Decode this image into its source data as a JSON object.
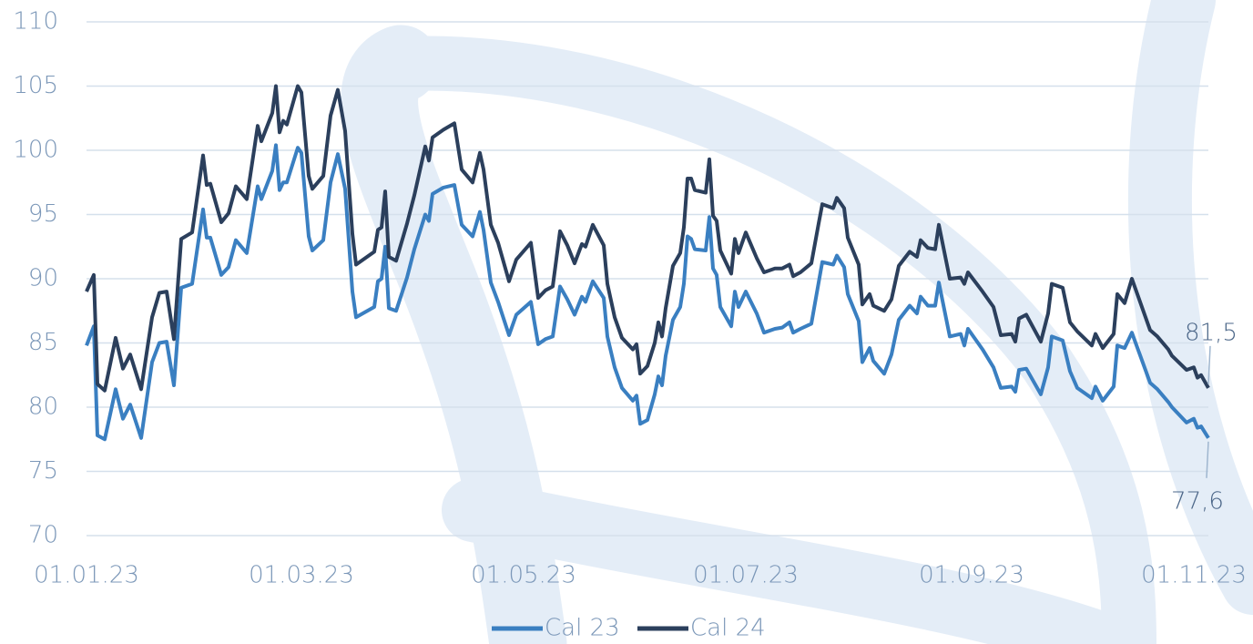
{
  "chart_data": {
    "type": "line",
    "x": [
      "01.01.23",
      "03.01.23",
      "04.01.23",
      "06.01.23",
      "09.01.23",
      "11.01.23",
      "13.01.23",
      "16.01.23",
      "19.01.23",
      "21.01.23",
      "23.01.23",
      "25.01.23",
      "27.01.23",
      "30.01.23",
      "02.02.23",
      "03.02.23",
      "04.02.23",
      "07.02.23",
      "09.02.23",
      "11.02.23",
      "14.02.23",
      "17.02.23",
      "18.02.23",
      "21.02.23",
      "22.02.23",
      "23.02.23",
      "24.02.23",
      "25.02.23",
      "28.02.23",
      "01.03.23",
      "03.03.23",
      "04.03.23",
      "07.03.23",
      "09.03.23",
      "11.03.23",
      "13.03.23",
      "15.03.23",
      "16.03.23",
      "21.03.23",
      "22.03.23",
      "23.03.23",
      "24.03.23",
      "25.03.23",
      "27.03.23",
      "30.03.23",
      "01.04.23",
      "04.04.23",
      "05.04.23",
      "06.04.23",
      "09.04.23",
      "12.04.23",
      "14.04.23",
      "17.04.23",
      "19.04.23",
      "20.04.23",
      "22.04.23",
      "24.04.23",
      "27.04.23",
      "29.04.23",
      "03.05.23",
      "05.05.23",
      "07.05.23",
      "09.05.23",
      "11.05.23",
      "13.05.23",
      "15.05.23",
      "17.05.23",
      "18.05.23",
      "20.05.23",
      "23.05.23",
      "24.05.23",
      "26.05.23",
      "28.05.23",
      "31.05.23",
      "01.06.23",
      "02.06.23",
      "04.06.23",
      "06.06.23",
      "07.06.23",
      "08.06.23",
      "09.06.23",
      "11.06.23",
      "13.06.23",
      "14.06.23",
      "15.06.23",
      "16.06.23",
      "17.06.23",
      "20.06.23",
      "21.06.23",
      "22.06.23",
      "23.06.23",
      "24.06.23",
      "27.06.23",
      "28.06.23",
      "29.06.23",
      "01.07.23",
      "04.07.23",
      "06.07.23",
      "09.07.23",
      "11.07.23",
      "13.07.23",
      "14.07.23",
      "16.07.23",
      "19.07.23",
      "21.07.23",
      "22.07.23",
      "25.07.23",
      "26.07.23",
      "28.07.23",
      "29.07.23",
      "01.08.23",
      "02.08.23",
      "04.08.23",
      "05.08.23",
      "08.08.23",
      "10.08.23",
      "12.08.23",
      "15.08.23",
      "17.08.23",
      "18.08.23",
      "20.08.23",
      "22.08.23",
      "23.08.23",
      "26.08.23",
      "29.08.23",
      "30.08.23",
      "31.08.23",
      "04.09.23",
      "07.09.23",
      "09.09.23",
      "12.09.23",
      "13.09.23",
      "14.09.23",
      "16.09.23",
      "20.09.23",
      "22.09.23",
      "23.09.23",
      "26.09.23",
      "28.09.23",
      "30.09.23",
      "04.10.23",
      "05.10.23",
      "07.10.23",
      "10.10.23",
      "11.10.23",
      "13.10.23",
      "15.10.23",
      "20.10.23",
      "22.10.23",
      "25.10.23",
      "26.10.23",
      "30.10.23",
      "01.11.23",
      "02.11.23",
      "03.11.23",
      "05.11.23"
    ],
    "series": [
      {
        "name": "Cal 23",
        "color": "#3a7fc1",
        "end_label": "77,6",
        "values": [
          84.8,
          86.3,
          77.8,
          77.5,
          81.4,
          79.1,
          80.2,
          77.6,
          83.5,
          85.0,
          85.1,
          81.7,
          89.3,
          89.6,
          95.4,
          93.2,
          93.2,
          90.3,
          90.9,
          93.0,
          92.0,
          97.2,
          96.2,
          98.4,
          100.4,
          96.9,
          97.5,
          97.5,
          100.2,
          99.8,
          93.3,
          92.2,
          93.0,
          97.5,
          99.7,
          97.0,
          89.0,
          87.0,
          87.8,
          89.8,
          90.0,
          92.5,
          87.7,
          87.5,
          90.1,
          92.3,
          95.0,
          94.5,
          96.6,
          97.1,
          97.3,
          94.2,
          93.3,
          95.2,
          93.8,
          89.7,
          88.2,
          85.6,
          87.2,
          88.2,
          84.9,
          85.3,
          85.5,
          89.4,
          88.4,
          87.2,
          88.6,
          88.2,
          89.8,
          88.5,
          85.5,
          83.1,
          81.5,
          80.5,
          80.9,
          78.7,
          79.0,
          81.0,
          82.4,
          81.7,
          84.0,
          86.8,
          87.8,
          89.6,
          93.3,
          93.1,
          92.3,
          92.2,
          94.8,
          90.8,
          90.3,
          87.8,
          86.3,
          89.0,
          87.8,
          89.0,
          87.3,
          85.8,
          86.1,
          86.2,
          86.6,
          85.8,
          86.1,
          86.5,
          89.7,
          91.3,
          91.1,
          91.8,
          90.9,
          88.8,
          86.7,
          83.5,
          84.6,
          83.6,
          82.6,
          84.1,
          86.8,
          87.9,
          87.3,
          88.6,
          87.9,
          87.9,
          89.7,
          85.5,
          85.7,
          84.8,
          86.1,
          84.5,
          83.1,
          81.5,
          81.6,
          81.2,
          82.9,
          83.0,
          81.0,
          83.1,
          85.5,
          85.2,
          82.8,
          81.5,
          80.7,
          81.6,
          80.5,
          81.6,
          84.8,
          84.6,
          85.8,
          81.9,
          81.4,
          80.4,
          80.0,
          78.8,
          79.1,
          78.4,
          78.5,
          77.6
        ]
      },
      {
        "name": "Cal 24",
        "color": "#2b3f5c",
        "end_label": "81,5",
        "values": [
          89.0,
          90.3,
          81.8,
          81.3,
          85.4,
          83.0,
          84.1,
          81.4,
          87.0,
          88.9,
          89.0,
          85.3,
          93.1,
          93.6,
          99.6,
          97.3,
          97.4,
          94.4,
          95.1,
          97.2,
          96.2,
          101.9,
          100.7,
          102.9,
          105.0,
          101.4,
          102.3,
          102.0,
          105.0,
          104.5,
          98.0,
          97.0,
          98.0,
          102.7,
          104.7,
          101.5,
          93.5,
          91.1,
          92.1,
          93.8,
          94.0,
          96.8,
          91.7,
          91.4,
          94.3,
          96.5,
          100.3,
          99.2,
          101.0,
          101.6,
          102.1,
          98.5,
          97.5,
          99.8,
          98.5,
          94.2,
          92.8,
          89.8,
          91.5,
          92.8,
          88.5,
          89.1,
          89.4,
          93.7,
          92.6,
          91.2,
          92.7,
          92.5,
          94.2,
          92.6,
          89.6,
          87.0,
          85.4,
          84.5,
          84.9,
          82.6,
          83.2,
          85.0,
          86.6,
          85.5,
          87.7,
          91.0,
          92.0,
          94.0,
          97.8,
          97.8,
          96.9,
          96.7,
          99.3,
          94.9,
          94.5,
          92.2,
          90.4,
          93.1,
          92.0,
          93.6,
          91.6,
          90.5,
          90.8,
          90.8,
          91.1,
          90.2,
          90.5,
          91.2,
          94.3,
          95.8,
          95.5,
          96.3,
          95.5,
          93.2,
          91.1,
          88.0,
          88.8,
          87.9,
          87.5,
          88.4,
          91.0,
          92.1,
          91.7,
          93.0,
          92.4,
          92.3,
          94.2,
          90.0,
          90.1,
          89.6,
          90.5,
          89.0,
          87.8,
          85.6,
          85.7,
          85.1,
          86.9,
          87.2,
          85.1,
          87.3,
          89.6,
          89.3,
          86.6,
          85.9,
          84.8,
          85.7,
          84.6,
          85.7,
          88.8,
          88.1,
          90.0,
          86.0,
          85.5,
          84.5,
          84.0,
          82.9,
          83.1,
          82.3,
          82.5,
          81.5
        ]
      }
    ],
    "xlim": [
      "01.01.23",
      "05.11.23"
    ],
    "xticks": [
      "01.01.23",
      "01.03.23",
      "01.05.23",
      "01.07.23",
      "01.09.23",
      "01.11.23"
    ],
    "ylim": [
      70,
      110
    ],
    "yticks": [
      70,
      75,
      80,
      85,
      90,
      95,
      100,
      105,
      110
    ],
    "grid": true,
    "legend": "bottom"
  }
}
